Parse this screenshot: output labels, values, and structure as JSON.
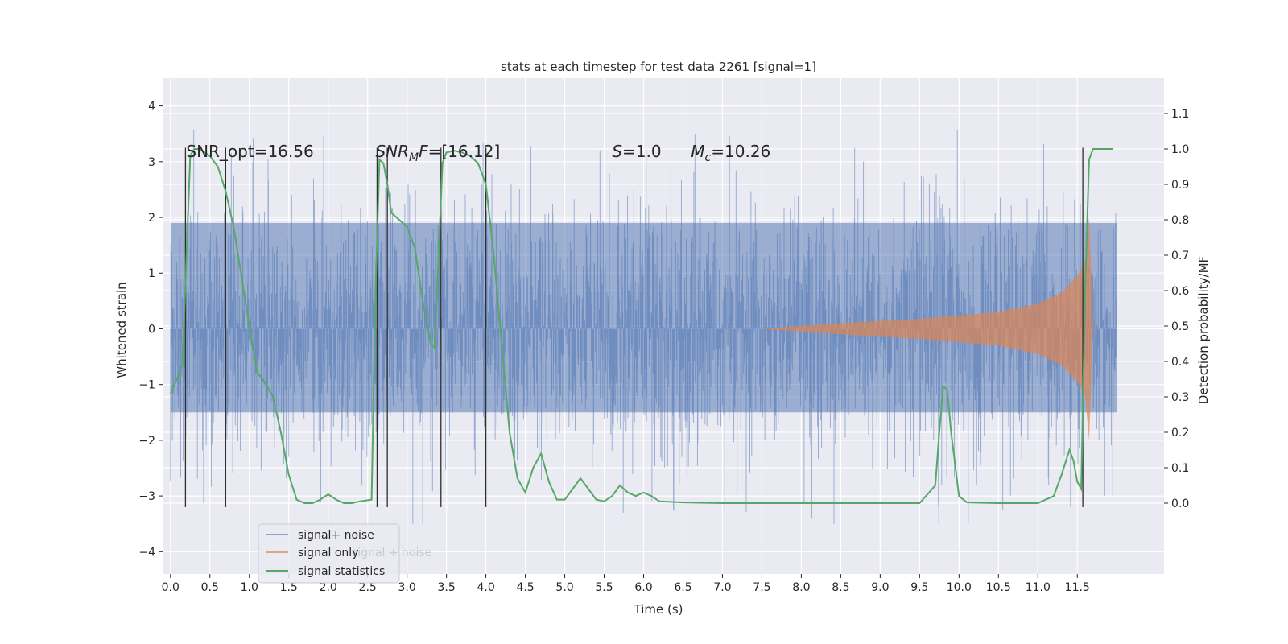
{
  "chart_data": {
    "type": "line",
    "title": "stats at each timestep for test data 2261 [signal=1]",
    "xlabel": "Time (s)",
    "ylabel": "Whitened strain",
    "ylabel_right": "Detection probability/MF",
    "xlim": [
      -0.1,
      12.6
    ],
    "ylim": [
      -4.4,
      4.5
    ],
    "ylim_right": [
      -0.2,
      1.2
    ],
    "x_ticks": [
      "0.0",
      "0.5",
      "1.0",
      "1.5",
      "2.0",
      "2.5",
      "3.0",
      "3.5",
      "4.0",
      "4.5",
      "5.0",
      "5.5",
      "6.0",
      "6.5",
      "7.0",
      "7.5",
      "8.0",
      "8.5",
      "9.0",
      "9.5",
      "10.0",
      "10.5",
      "11.0",
      "11.5"
    ],
    "y_ticks": [
      "4",
      "3",
      "2",
      "1",
      "0",
      "−1",
      "−2",
      "−3",
      "−4"
    ],
    "y_ticks_right": [
      "1.1",
      "1.0",
      "0.9",
      "0.8",
      "0.7",
      "0.6",
      "0.5",
      "0.4",
      "0.3",
      "0.2",
      "0.1",
      "0.0"
    ],
    "grid": true,
    "legend_position": "lower-left",
    "legend": [
      "signal+ noise",
      "signal only",
      "signal statistics"
    ],
    "annotations": [
      {
        "text": "SNR_opt=16.56",
        "x": 0.2,
        "y": 3.2
      },
      {
        "text": "SNR_MF=[16.12]",
        "x": 2.6,
        "y": 3.2
      },
      {
        "text": "S=1.0",
        "x": 5.6,
        "y": 3.2
      },
      {
        "text": "M_c=10.26",
        "x": 6.6,
        "y": 3.2
      }
    ],
    "vertical_markers_x": [
      0.19,
      0.7,
      2.62,
      2.75,
      3.43,
      4.0,
      11.57
    ],
    "series": [
      {
        "name": "signal+ noise",
        "axis": "left",
        "type": "noise-band",
        "x_range": [
          0.0,
          12.0
        ],
        "dense_band": [
          -1.5,
          1.9
        ],
        "spike_range": [
          -3.5,
          4.0
        ]
      },
      {
        "name": "signal only",
        "axis": "left",
        "type": "chirp-envelope",
        "x": [
          7.5,
          8.0,
          8.5,
          9.0,
          9.5,
          10.0,
          10.5,
          11.0,
          11.3,
          11.5,
          11.6,
          11.65,
          11.7
        ],
        "amplitude": [
          0.0,
          0.05,
          0.1,
          0.14,
          0.18,
          0.24,
          0.3,
          0.45,
          0.65,
          0.95,
          1.2,
          2.0,
          0.0
        ]
      },
      {
        "name": "signal statistics",
        "axis": "right",
        "type": "line",
        "x": [
          0.0,
          0.1,
          0.15,
          0.2,
          0.25,
          0.3,
          0.35,
          0.4,
          0.5,
          0.6,
          0.7,
          0.8,
          0.9,
          1.0,
          1.1,
          1.2,
          1.3,
          1.4,
          1.5,
          1.6,
          1.7,
          1.8,
          1.9,
          2.0,
          2.1,
          2.2,
          2.3,
          2.4,
          2.55,
          2.6,
          2.65,
          2.7,
          2.75,
          2.8,
          2.9,
          3.0,
          3.1,
          3.2,
          3.3,
          3.35,
          3.4,
          3.45,
          3.5,
          3.6,
          3.7,
          3.8,
          3.9,
          4.0,
          4.1,
          4.2,
          4.3,
          4.4,
          4.5,
          4.6,
          4.7,
          4.8,
          4.9,
          5.0,
          5.1,
          5.2,
          5.3,
          5.4,
          5.5,
          5.6,
          5.7,
          5.8,
          5.9,
          6.0,
          6.1,
          6.2,
          6.5,
          7.0,
          8.0,
          9.0,
          9.5,
          9.7,
          9.75,
          9.8,
          9.85,
          9.9,
          10.0,
          10.1,
          10.5,
          11.0,
          11.2,
          11.3,
          11.4,
          11.45,
          11.5,
          11.55,
          11.6,
          11.65,
          11.7,
          11.8,
          11.95
        ],
        "y": [
          0.31,
          0.36,
          0.39,
          0.68,
          0.98,
          1.0,
          1.0,
          0.995,
          0.98,
          0.95,
          0.88,
          0.78,
          0.64,
          0.5,
          0.37,
          0.34,
          0.3,
          0.2,
          0.08,
          0.01,
          0.0,
          0.0,
          0.01,
          0.025,
          0.01,
          0.0,
          0.0,
          0.005,
          0.01,
          0.6,
          0.97,
          0.96,
          0.9,
          0.82,
          0.8,
          0.78,
          0.72,
          0.57,
          0.45,
          0.44,
          0.7,
          0.96,
          0.99,
          0.995,
          0.99,
          0.98,
          0.96,
          0.9,
          0.7,
          0.45,
          0.2,
          0.07,
          0.03,
          0.1,
          0.14,
          0.06,
          0.01,
          0.01,
          0.04,
          0.07,
          0.04,
          0.01,
          0.005,
          0.02,
          0.05,
          0.03,
          0.02,
          0.03,
          0.02,
          0.005,
          0.002,
          0.0,
          0.0,
          0.0,
          0.0,
          0.05,
          0.2,
          0.33,
          0.32,
          0.2,
          0.02,
          0.002,
          0.0,
          0.0,
          0.02,
          0.08,
          0.15,
          0.12,
          0.06,
          0.04,
          0.6,
          0.97,
          1.0,
          1.0,
          1.0
        ]
      }
    ]
  },
  "colors": {
    "plot_background": "#eaeaf2",
    "grid": "#ffffff",
    "signal_noise": "#4c72b0",
    "signal_only": "#dd8452",
    "signal_statistics": "#55a868",
    "marker_line": "#2e2e2e",
    "legend_bg": "#eaeaf2",
    "legend_border": "#cccccc"
  },
  "legend_ghost_text": "signal + noise"
}
